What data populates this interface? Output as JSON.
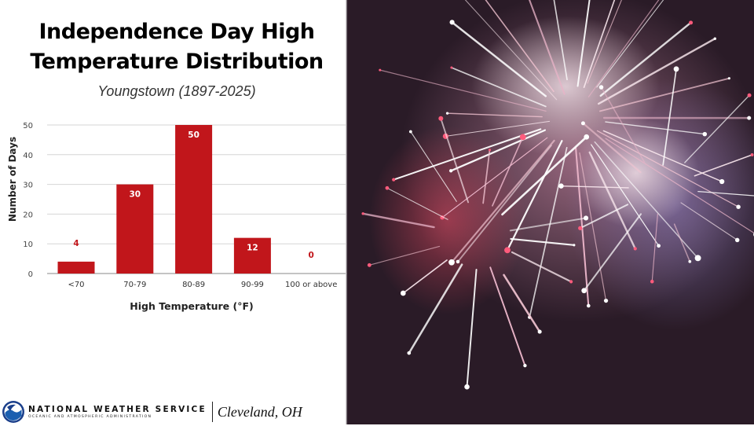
{
  "header": {
    "title_line1": "Independence Day High",
    "title_line2": "Temperature Distribution",
    "subtitle": "Youngstown (1897-2025)"
  },
  "chart_data": {
    "type": "bar",
    "categories": [
      "<70",
      "70-79",
      "80-89",
      "90-99",
      "100 or above"
    ],
    "values": [
      4,
      30,
      50,
      12,
      0
    ],
    "xlabel": "High Temperature (°F)",
    "ylabel": "Number of Days",
    "ylim": [
      0,
      50
    ],
    "yticks": [
      0,
      10,
      20,
      30,
      40,
      50
    ],
    "data_labels": true,
    "grid": true,
    "legend": "none",
    "bar_color": "#c1161b",
    "label_color": "#c1161b"
  },
  "footer": {
    "agency_name": "NATIONAL WEATHER SERVICE",
    "agency_sub": "OCEANIC AND ATMOSPHERIC ADMINISTRATION",
    "office": "Cleveland, OH"
  },
  "photo": {
    "subject": "fireworks",
    "colors": [
      "#ffffff",
      "#d94a6b",
      "#9a8acb",
      "#2a1a26"
    ]
  }
}
